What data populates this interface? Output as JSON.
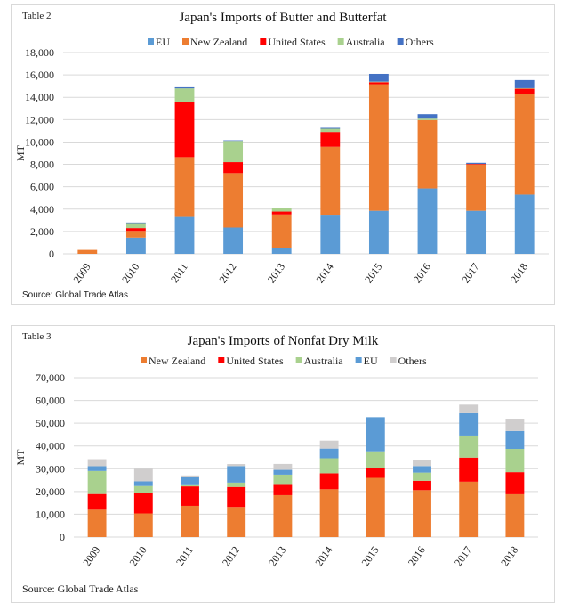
{
  "chart_data": [
    {
      "type": "bar",
      "stacked": true,
      "table_label": "Table 2",
      "title": "Japan's Imports of Butter and Butterfat",
      "ylabel": "MT",
      "ylim": [
        0,
        18000
      ],
      "yticks": [
        0,
        2000,
        4000,
        6000,
        8000,
        10000,
        12000,
        14000,
        16000,
        18000
      ],
      "grid": true,
      "legend": "top",
      "categories": [
        "2009",
        "2010",
        "2011",
        "2012",
        "2013",
        "2014",
        "2015",
        "2016",
        "2017",
        "2018"
      ],
      "series": [
        {
          "name": "EU",
          "color": "#5b9bd5",
          "values": [
            0,
            1450,
            3300,
            2350,
            550,
            3500,
            3850,
            5850,
            3850,
            5300
          ]
        },
        {
          "name": "New Zealand",
          "color": "#ed7d31",
          "values": [
            350,
            600,
            5350,
            4870,
            2970,
            6080,
            11320,
            6110,
            4140,
            9000
          ]
        },
        {
          "name": "United States",
          "color": "#ff0000",
          "values": [
            0,
            250,
            4970,
            980,
            260,
            1320,
            180,
            0,
            50,
            470
          ]
        },
        {
          "name": "Australia",
          "color": "#a9d18e",
          "values": [
            0,
            450,
            1180,
            1900,
            320,
            290,
            50,
            130,
            0,
            50
          ]
        },
        {
          "name": "Others",
          "color": "#4472c4",
          "values": [
            0,
            50,
            100,
            50,
            0,
            80,
            690,
            400,
            100,
            720
          ]
        }
      ],
      "source": "Source: Global Trade Atlas"
    },
    {
      "type": "bar",
      "stacked": true,
      "table_label": "Table 3",
      "title": "Japan's Imports of Nonfat Dry Milk",
      "ylabel": "MT",
      "ylim": [
        0,
        70000
      ],
      "yticks": [
        0,
        10000,
        20000,
        30000,
        40000,
        50000,
        60000,
        70000
      ],
      "grid": true,
      "legend": "top",
      "categories": [
        "2009",
        "2010",
        "2011",
        "2012",
        "2013",
        "2014",
        "2015",
        "2016",
        "2017",
        "2018"
      ],
      "series": [
        {
          "name": "New Zealand",
          "color": "#ed7d31",
          "values": [
            12000,
            10350,
            13700,
            13200,
            18400,
            21000,
            26000,
            20600,
            24300,
            18800
          ]
        },
        {
          "name": "United States",
          "color": "#ff0000",
          "values": [
            6900,
            9050,
            8550,
            8800,
            4900,
            7000,
            4400,
            4100,
            10600,
            9700
          ]
        },
        {
          "name": "Australia",
          "color": "#a9d18e",
          "values": [
            10100,
            3000,
            900,
            1900,
            4100,
            6600,
            7250,
            3600,
            9700,
            10200
          ]
        },
        {
          "name": "EU",
          "color": "#5b9bd5",
          "values": [
            2100,
            2050,
            3350,
            7250,
            2100,
            4250,
            15000,
            2850,
            9800,
            7900
          ]
        },
        {
          "name": "Others",
          "color": "#d0cece",
          "values": [
            3100,
            5550,
            550,
            900,
            2600,
            3500,
            0,
            2700,
            3750,
            5400
          ]
        }
      ],
      "source": "Source: Global Trade Atlas"
    }
  ]
}
